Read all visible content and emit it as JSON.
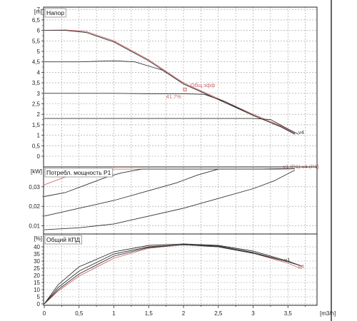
{
  "chart_data": {
    "type": "line",
    "x_unit": "[m3/h]",
    "x_ticks": [
      "0",
      "0,5",
      "1",
      "1,5",
      "2",
      "2,5",
      "3",
      "3,5"
    ],
    "xlim": [
      0,
      3.9
    ],
    "colors": {
      "curve": "#333333",
      "highlight": "#d06a6a"
    },
    "panels": [
      {
        "id": "head",
        "title": "Напор",
        "unit": "[m]",
        "ylim": [
          0,
          7.5
        ],
        "y_ticks": [
          {
            "v": 0,
            "t": "0"
          },
          {
            "v": 0.5,
            "t": "0,5"
          },
          {
            "v": 1,
            "t": "1"
          },
          {
            "v": 1.5,
            "t": "1,5"
          },
          {
            "v": 2,
            "t": "2"
          },
          {
            "v": 2.5,
            "t": "2,5"
          },
          {
            "v": 3,
            "t": "3"
          },
          {
            "v": 3.5,
            "t": "3,5"
          },
          {
            "v": 4,
            "t": "4"
          },
          {
            "v": 4.5,
            "t": "4,5"
          },
          {
            "v": 5,
            "t": "5"
          },
          {
            "v": 5.5,
            "t": "5,5"
          },
          {
            "v": 6,
            "t": "6"
          },
          {
            "v": 6.5,
            "t": "6,5"
          },
          {
            "v": 7,
            "t": "7"
          }
        ],
        "series": [
          {
            "style": "highlight",
            "points": [
              [
                0,
                6.0
              ],
              [
                0.3,
                6.02
              ],
              [
                0.6,
                5.95
              ],
              [
                1.0,
                5.5
              ],
              [
                1.5,
                4.6
              ],
              [
                2.0,
                3.5
              ],
              [
                2.5,
                2.75
              ],
              [
                3.0,
                2.0
              ],
              [
                3.4,
                1.45
              ],
              [
                3.6,
                1.1
              ]
            ]
          },
          {
            "style": "curve",
            "points": [
              [
                0,
                6.0
              ],
              [
                0.3,
                6.0
              ],
              [
                0.6,
                5.9
              ],
              [
                1.0,
                5.45
              ],
              [
                1.5,
                4.55
              ],
              [
                2.0,
                3.45
              ],
              [
                2.5,
                2.7
              ],
              [
                3.0,
                1.95
              ],
              [
                3.4,
                1.4
              ],
              [
                3.6,
                1.05
              ]
            ]
          },
          {
            "style": "curve",
            "points": [
              [
                0,
                4.5
              ],
              [
                0.5,
                4.5
              ],
              [
                1.0,
                4.55
              ],
              [
                1.3,
                4.5
              ],
              [
                1.7,
                4.1
              ],
              [
                2.0,
                3.45
              ],
              [
                2.5,
                2.7
              ],
              [
                3.0,
                1.95
              ],
              [
                3.4,
                1.4
              ],
              [
                3.6,
                1.05
              ]
            ]
          },
          {
            "style": "curve",
            "points": [
              [
                0,
                3.0
              ],
              [
                0.5,
                3.0
              ],
              [
                1.0,
                3.0
              ],
              [
                1.5,
                2.98
              ],
              [
                2.0,
                2.98
              ],
              [
                2.3,
                2.95
              ],
              [
                2.6,
                2.6
              ],
              [
                3.0,
                1.95
              ],
              [
                3.4,
                1.4
              ],
              [
                3.6,
                1.05
              ]
            ]
          },
          {
            "style": "curve",
            "points": [
              [
                0,
                1.8
              ],
              [
                0.5,
                1.8
              ],
              [
                1.0,
                1.8
              ],
              [
                1.5,
                1.8
              ],
              [
                2.0,
                1.8
              ],
              [
                2.5,
                1.8
              ],
              [
                3.0,
                1.8
              ],
              [
                3.25,
                1.75
              ],
              [
                3.5,
                1.3
              ],
              [
                3.65,
                1.05
              ]
            ]
          }
        ],
        "labels": [
          {
            "text": "Общ.эфф",
            "x": 2.1,
            "y": 3.3,
            "style": "highlight"
          },
          {
            "text": "41.7%",
            "x": 1.75,
            "y": 2.75,
            "style": "highlight"
          },
          {
            "text": "v4",
            "x": 3.65,
            "y": 1.05,
            "style": "curve"
          }
        ]
      },
      {
        "id": "power",
        "title": "Потребл. мощность P1",
        "unit": "[kW]",
        "ylim": [
          0,
          0.045
        ],
        "y_ticks": [
          {
            "v": 0.01,
            "t": "0,01"
          },
          {
            "v": 0.02,
            "t": "0,02"
          },
          {
            "v": 0.03,
            "t": "0,03"
          }
        ],
        "series": [
          {
            "style": "highlight",
            "points": [
              [
                0,
                0.031
              ],
              [
                0.3,
                0.035
              ],
              [
                0.6,
                0.038
              ],
              [
                1.0,
                0.039
              ],
              [
                1.5,
                0.039
              ],
              [
                2.0,
                0.039
              ],
              [
                2.5,
                0.039
              ],
              [
                3.0,
                0.039
              ],
              [
                3.5,
                0.0392
              ],
              [
                3.6,
                0.0392
              ]
            ]
          },
          {
            "style": "curve",
            "points": [
              [
                0,
                0.025
              ],
              [
                0.3,
                0.027
              ],
              [
                0.6,
                0.031
              ],
              [
                0.9,
                0.035
              ],
              [
                1.1,
                0.037
              ],
              [
                1.4,
                0.039
              ],
              [
                2.0,
                0.039
              ],
              [
                2.5,
                0.039
              ],
              [
                3.0,
                0.039
              ],
              [
                3.6,
                0.0392
              ]
            ]
          },
          {
            "style": "curve",
            "points": [
              [
                0,
                0.015
              ],
              [
                0.5,
                0.019
              ],
              [
                1.0,
                0.023
              ],
              [
                1.5,
                0.028
              ],
              [
                1.9,
                0.032
              ],
              [
                2.2,
                0.036
              ],
              [
                2.5,
                0.039
              ],
              [
                3.0,
                0.039
              ],
              [
                3.6,
                0.0392
              ]
            ]
          },
          {
            "style": "curve",
            "points": [
              [
                0,
                0.008
              ],
              [
                0.5,
                0.009
              ],
              [
                1.0,
                0.011
              ],
              [
                1.5,
                0.015
              ],
              [
                2.0,
                0.019
              ],
              [
                2.5,
                0.024
              ],
              [
                3.0,
                0.029
              ],
              [
                3.3,
                0.033
              ],
              [
                3.6,
                0.0385
              ]
            ]
          }
        ],
        "labels": [
          {
            "text": "v1 (P1)",
            "x": 3.43,
            "y": 0.0395,
            "style": "highlight"
          },
          {
            "text": "v4 (P1)",
            "x": 3.7,
            "y": 0.0395,
            "style": "highlight"
          }
        ]
      },
      {
        "id": "eff",
        "title": "Общий КПД",
        "unit": "[%]",
        "ylim": [
          0,
          45
        ],
        "y_ticks": [
          {
            "v": 0,
            "t": "0"
          },
          {
            "v": 5,
            "t": "5"
          },
          {
            "v": 10,
            "t": "10"
          },
          {
            "v": 15,
            "t": "15"
          },
          {
            "v": 20,
            "t": "20"
          },
          {
            "v": 25,
            "t": "25"
          },
          {
            "v": 30,
            "t": "30"
          },
          {
            "v": 35,
            "t": "35"
          },
          {
            "v": 40,
            "t": "40"
          }
        ],
        "series": [
          {
            "style": "highlight",
            "points": [
              [
                0,
                0
              ],
              [
                0.2,
                9
              ],
              [
                0.5,
                19.5
              ],
              [
                1.0,
                32
              ],
              [
                1.5,
                39
              ],
              [
                2.0,
                41.5
              ],
              [
                2.5,
                40
              ],
              [
                3.0,
                35.5
              ],
              [
                3.5,
                28.5
              ],
              [
                3.7,
                24.5
              ]
            ]
          },
          {
            "style": "curve",
            "points": [
              [
                0,
                0
              ],
              [
                0.2,
                10
              ],
              [
                0.5,
                21
              ],
              [
                1.0,
                33.5
              ],
              [
                1.5,
                39.5
              ],
              [
                2.0,
                41.5
              ],
              [
                2.5,
                40
              ],
              [
                3.0,
                35.5
              ],
              [
                3.5,
                29.5
              ],
              [
                3.7,
                26.5
              ]
            ]
          },
          {
            "style": "curve",
            "points": [
              [
                0,
                0
              ],
              [
                0.2,
                11.5
              ],
              [
                0.5,
                23
              ],
              [
                1.0,
                35
              ],
              [
                1.5,
                40
              ],
              [
                2.0,
                41.5
              ],
              [
                2.5,
                40.5
              ],
              [
                3.0,
                36
              ],
              [
                3.5,
                29.5
              ],
              [
                3.7,
                26.5
              ]
            ]
          },
          {
            "style": "curve",
            "points": [
              [
                0,
                0
              ],
              [
                0.2,
                13.5
              ],
              [
                0.5,
                26
              ],
              [
                1.0,
                36.5
              ],
              [
                1.5,
                41
              ],
              [
                2.0,
                42
              ],
              [
                2.5,
                41
              ],
              [
                3.0,
                37
              ],
              [
                3.5,
                30
              ],
              [
                3.7,
                26.5
              ]
            ]
          }
        ],
        "labels": [
          {
            "text": "v1",
            "x": 3.45,
            "y": 29.5,
            "style": "curve"
          },
          {
            "text": "v4",
            "x": 3.65,
            "y": 25,
            "style": "highlight"
          }
        ]
      }
    ]
  }
}
